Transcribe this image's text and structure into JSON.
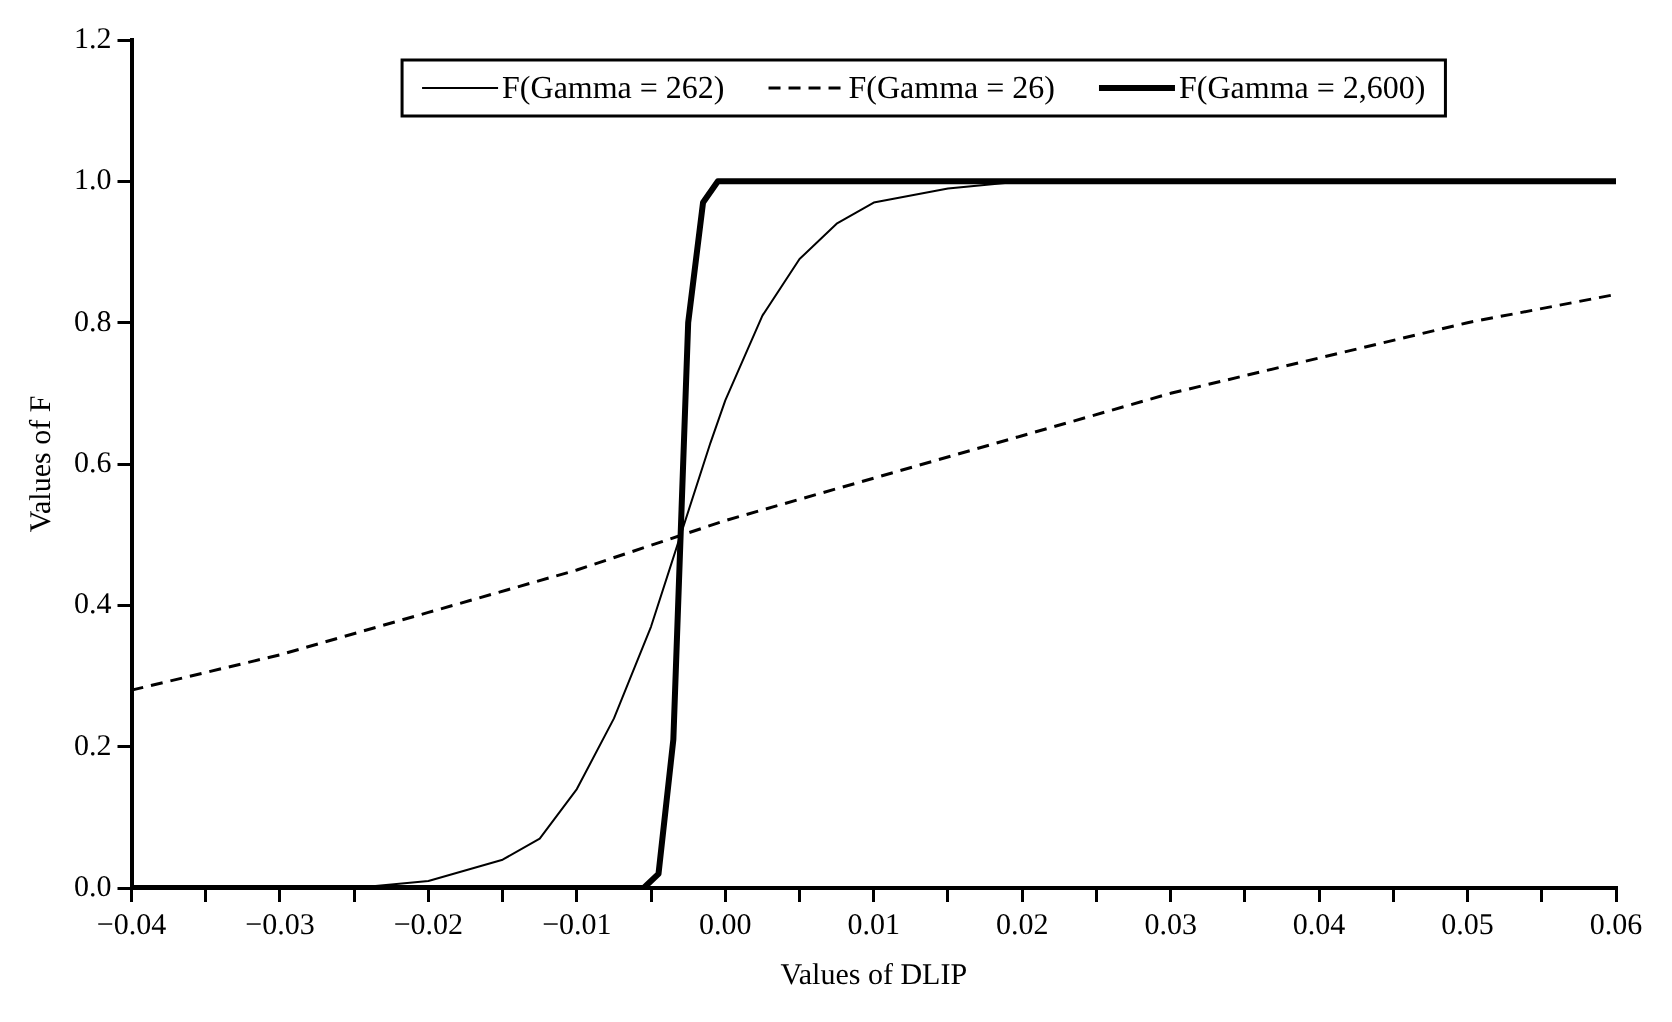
{
  "chart_data": {
    "type": "line",
    "xlabel": "Values of DLIP",
    "ylabel": "Values of F",
    "xlim": [
      -0.04,
      0.06
    ],
    "ylim": [
      0,
      1.2
    ],
    "xticks": [
      {
        "value": -0.04,
        "label": "−0.04"
      },
      {
        "value": -0.035,
        "label": null
      },
      {
        "value": -0.03,
        "label": "−0.03"
      },
      {
        "value": -0.025,
        "label": null
      },
      {
        "value": -0.02,
        "label": "−0.02"
      },
      {
        "value": -0.015,
        "label": null
      },
      {
        "value": -0.01,
        "label": "−0.01"
      },
      {
        "value": -0.005,
        "label": null
      },
      {
        "value": 0,
        "label": "0.00"
      },
      {
        "value": 0.005,
        "label": null
      },
      {
        "value": 0.01,
        "label": "0.01"
      },
      {
        "value": 0.015,
        "label": null
      },
      {
        "value": 0.02,
        "label": "0.02"
      },
      {
        "value": 0.025,
        "label": null
      },
      {
        "value": 0.03,
        "label": "0.03"
      },
      {
        "value": 0.035,
        "label": null
      },
      {
        "value": 0.04,
        "label": "0.04"
      },
      {
        "value": 0.045,
        "label": null
      },
      {
        "value": 0.05,
        "label": "0.05"
      },
      {
        "value": 0.055,
        "label": null
      },
      {
        "value": 0.06,
        "label": "0.06"
      }
    ],
    "yticks": [
      {
        "value": 0,
        "label": "0.0"
      },
      {
        "value": 0.2,
        "label": "0.2"
      },
      {
        "value": 0.4,
        "label": "0.4"
      },
      {
        "value": 0.6,
        "label": "0.6"
      },
      {
        "value": 0.8,
        "label": "0.8"
      },
      {
        "value": 1,
        "label": "1.0"
      },
      {
        "value": 1.2,
        "label": "1.2"
      }
    ],
    "grid": false,
    "legend": "top",
    "marker": "none",
    "series": [
      {
        "name": "F(Gamma = 262)",
        "color": "#000000",
        "line_style": "solid",
        "x": [
          -0.04,
          -0.025,
          -0.02,
          -0.015,
          -0.0125,
          -0.01,
          -0.0075,
          -0.005,
          -0.003,
          -0.001,
          0,
          0.0025,
          0.005,
          0.0075,
          0.01,
          0.015,
          0.02,
          0.06
        ],
        "values": [
          0,
          0,
          0.01,
          0.04,
          0.07,
          0.14,
          0.24,
          0.37,
          0.5,
          0.63,
          0.69,
          0.81,
          0.89,
          0.94,
          0.97,
          0.99,
          1,
          1
        ]
      },
      {
        "name": "F(Gamma = 26)",
        "color": "#000000",
        "line_style": "dashed",
        "x": [
          -0.04,
          -0.03,
          -0.02,
          -0.01,
          0,
          0.01,
          0.02,
          0.03,
          0.04,
          0.05,
          0.06
        ],
        "values": [
          0.28,
          0.33,
          0.39,
          0.45,
          0.52,
          0.58,
          0.64,
          0.7,
          0.75,
          0.8,
          0.84
        ]
      },
      {
        "name": "F(Gamma = 2,600)",
        "color": "#000000",
        "line_style": "solid",
        "x": [
          -0.04,
          -0.0055,
          -0.0045,
          -0.0035,
          -0.0025,
          -0.0015,
          -0.0005,
          0.06
        ],
        "values": [
          0,
          0,
          0.02,
          0.21,
          0.8,
          0.97,
          1,
          1
        ]
      }
    ]
  }
}
